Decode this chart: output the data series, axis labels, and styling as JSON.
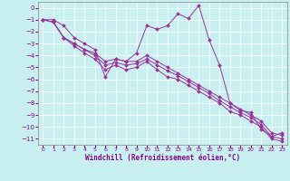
{
  "xlabel": "Windchill (Refroidissement éolien,°C)",
  "x_hours": [
    0,
    1,
    2,
    3,
    4,
    5,
    6,
    7,
    8,
    9,
    10,
    11,
    12,
    13,
    14,
    15,
    16,
    17,
    18,
    19,
    20,
    21,
    22,
    23
  ],
  "series": [
    [
      -1.0,
      -1.0,
      -1.5,
      -2.5,
      -3.0,
      -3.5,
      -5.8,
      -4.3,
      -4.5,
      -3.8,
      -1.5,
      -1.8,
      -1.5,
      -0.5,
      -0.9,
      0.2,
      -2.7,
      -4.8,
      -8.0,
      -8.6,
      -8.8,
      -10.2,
      -10.8,
      -10.5
    ],
    [
      -1.0,
      -1.2,
      -2.5,
      -3.0,
      -3.5,
      -3.8,
      -4.5,
      -4.3,
      -4.5,
      -4.5,
      -4.0,
      -4.5,
      -5.0,
      -5.5,
      -6.0,
      -6.5,
      -7.0,
      -7.5,
      -8.0,
      -8.5,
      -9.0,
      -9.5,
      -10.5,
      -10.7
    ],
    [
      -1.0,
      -1.2,
      -2.5,
      -3.0,
      -3.5,
      -4.0,
      -4.8,
      -4.6,
      -4.8,
      -4.7,
      -4.3,
      -4.8,
      -5.3,
      -5.7,
      -6.2,
      -6.7,
      -7.2,
      -7.8,
      -8.3,
      -8.8,
      -9.2,
      -9.8,
      -10.8,
      -11.0
    ],
    [
      -1.0,
      -1.2,
      -2.5,
      -3.2,
      -3.8,
      -4.3,
      -5.2,
      -4.8,
      -5.2,
      -5.0,
      -4.5,
      -5.2,
      -5.8,
      -6.0,
      -6.5,
      -7.0,
      -7.5,
      -8.0,
      -8.7,
      -9.0,
      -9.5,
      -10.0,
      -11.0,
      -11.2
    ]
  ],
  "line_color": "#993399",
  "marker": "D",
  "marker_size": 2.0,
  "bg_color": "#c8f0f0",
  "grid_color": "#ffffff",
  "ylim": [
    -11.5,
    0.5
  ],
  "yticks": [
    0,
    -1,
    -2,
    -3,
    -4,
    -5,
    -6,
    -7,
    -8,
    -9,
    -10,
    -11
  ],
  "xlim": [
    -0.5,
    23.5
  ]
}
